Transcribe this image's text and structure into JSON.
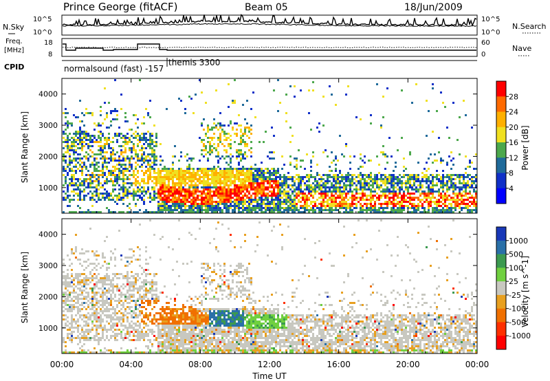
{
  "header": {
    "station": "Prince George (fitACF)",
    "beam": "Beam 05",
    "date": "18/Jun/2009"
  },
  "top_panels": {
    "nsky_label": "N.Sky",
    "nsearch_label": "N.Search",
    "count_ticks": [
      "10^5",
      "10^0"
    ],
    "freq_label": "Freq.",
    "freq_unit": "[MHz]",
    "freq_ticks": [
      "18",
      "8"
    ],
    "nave_label": "Nave",
    "nave_ticks": [
      "60",
      "0"
    ],
    "cpid_label": "CPID",
    "cpid_modes": [
      "normalsound (fast) -157",
      "themis 3300"
    ]
  },
  "chart_data": [
    {
      "type": "heatmap",
      "title": "",
      "variable": "Power",
      "colorbar_label": "Power [dB]",
      "colorbar_ticks": [
        "28",
        "24",
        "20",
        "16",
        "12",
        "8",
        "4"
      ],
      "colorbar_colors": [
        "#ff0000",
        "#ff6a00",
        "#ffb000",
        "#f0e020",
        "#4ca84c",
        "#1f6a9a",
        "#1030c8",
        "#0000ff"
      ],
      "ylabel": "Slant Range [km]",
      "ylim": [
        180,
        4500
      ],
      "yticks": [
        "4000",
        "3000",
        "2000",
        "1000"
      ],
      "xlim": [
        "00:00",
        "24:00"
      ]
    },
    {
      "type": "heatmap",
      "title": "",
      "variable": "Velocity",
      "colorbar_label": "Velocity [m s^-1]",
      "colorbar_ticks": [
        "1000",
        "500",
        "100",
        "25",
        "-25",
        "-100",
        "-500",
        "-1000"
      ],
      "colorbar_colors": [
        "#1838b8",
        "#2a70a8",
        "#3c9a50",
        "#70d040",
        "#c8c8c0",
        "#e8a020",
        "#f07000",
        "#ff3000",
        "#ff0000"
      ],
      "ylabel": "Slant Range [km]",
      "ylim": [
        180,
        4500
      ],
      "yticks": [
        "4000",
        "3000",
        "2000",
        "1000"
      ],
      "xlabel": "Time UT",
      "xticks": [
        "00:00",
        "04:00",
        "08:00",
        "12:00",
        "16:00",
        "20:00",
        "00:00"
      ]
    }
  ]
}
